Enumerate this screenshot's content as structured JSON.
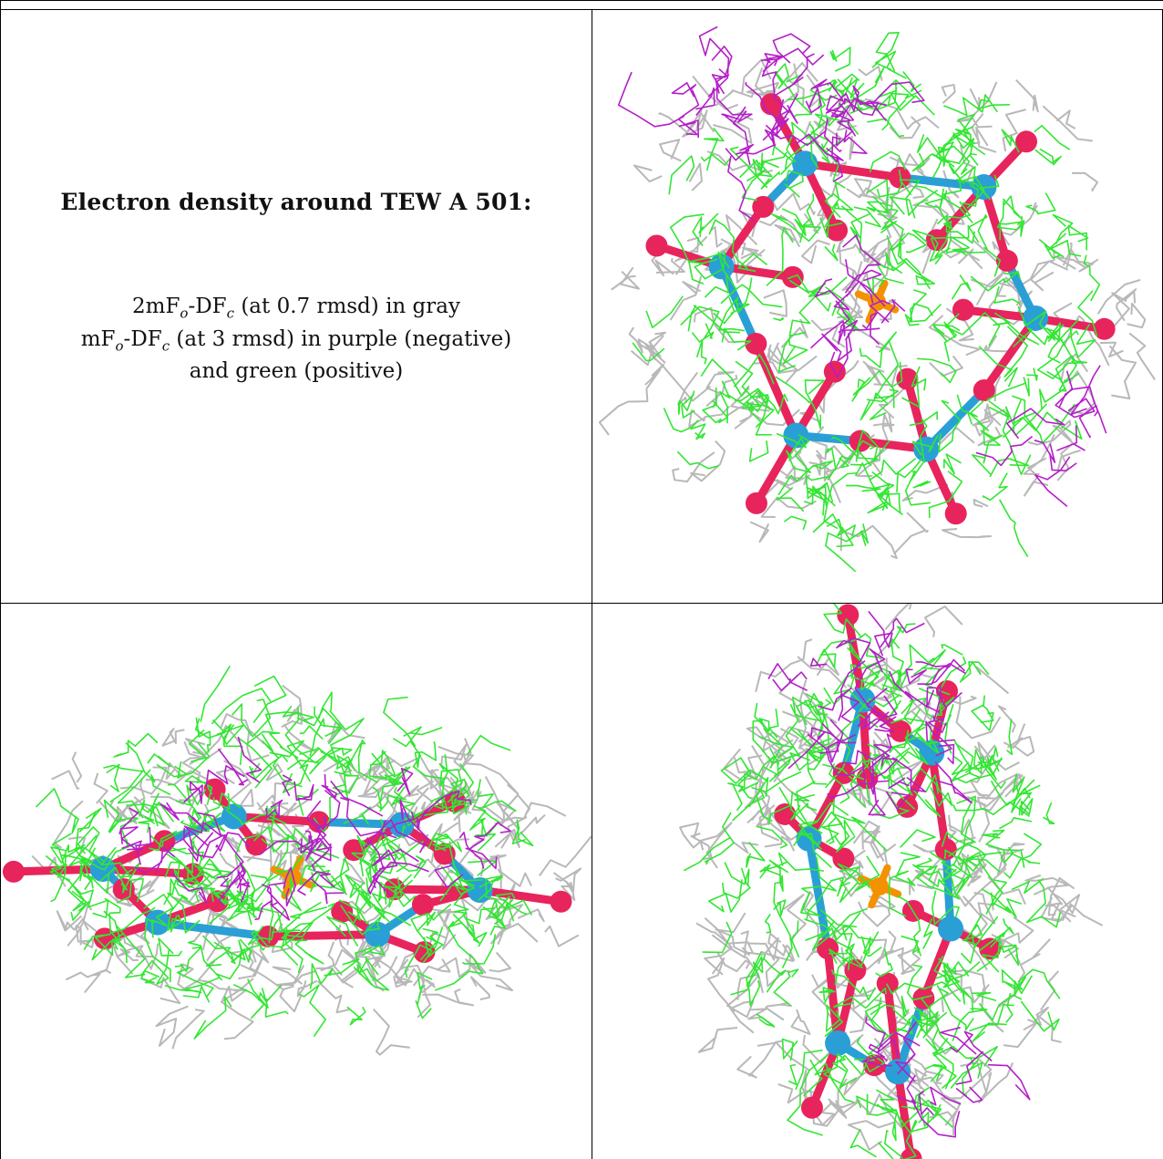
{
  "caption": {
    "title": "Electron density around TEW A 501:",
    "line1_prefix": "2mF",
    "line1_sub": "o",
    "line1_mid": "-DF",
    "line1_sub2": "c",
    "line1_suffix": " (at 0.7 rmsd) in gray",
    "line2_prefix": "mF",
    "line2_sub": "o",
    "line2_mid": "-DF",
    "line2_sub2": "c",
    "line2_suffix": " (at 3 rmsd) in purple (negative)",
    "line3": "and green (positive)"
  },
  "colors": {
    "gray_mesh": "#b8b8b8",
    "green_mesh": "#33e633",
    "purple_mesh": "#b41fc8",
    "metal": "#2a9fd6",
    "oxygen": "#e8245c",
    "center": "#f39200"
  },
  "panels": [
    {
      "name": "view-top"
    },
    {
      "name": "view-side"
    },
    {
      "name": "view-end"
    }
  ]
}
